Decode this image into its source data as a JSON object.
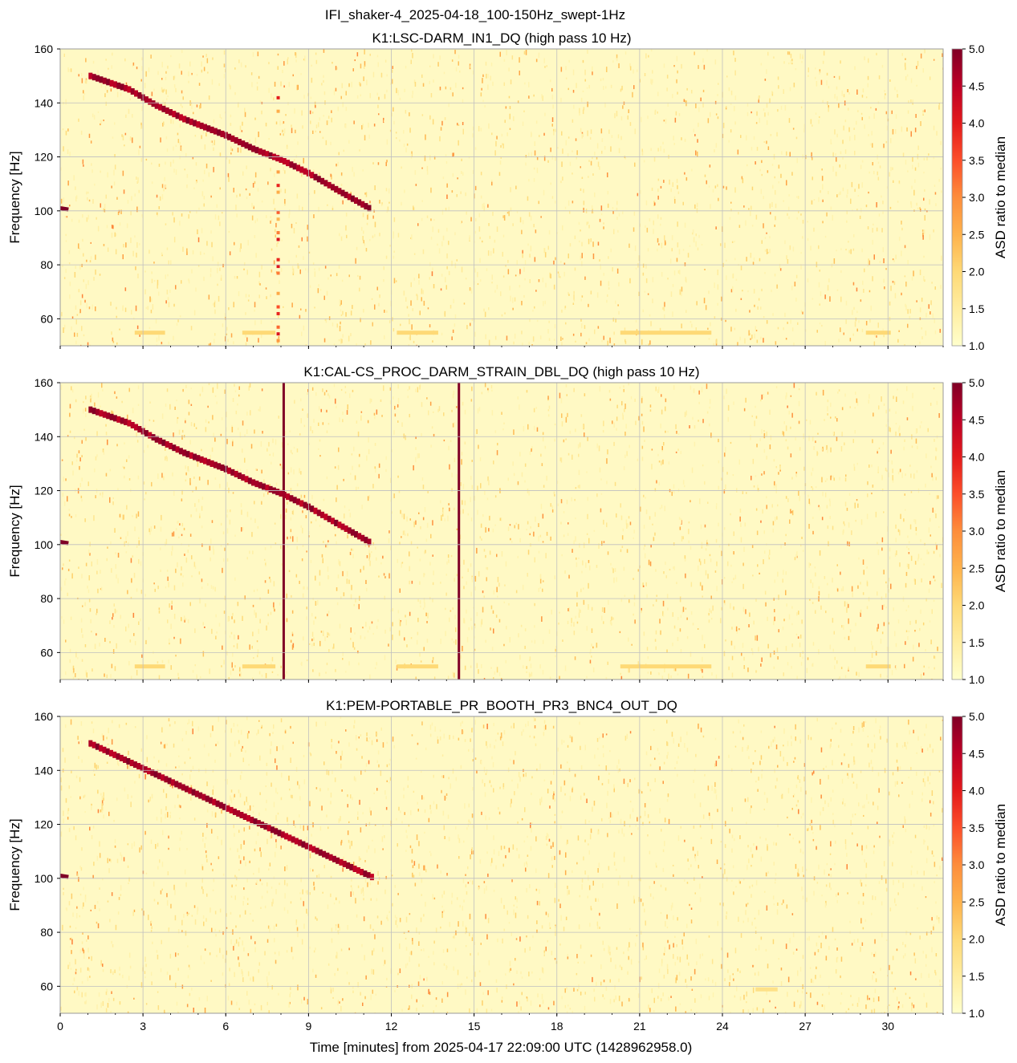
{
  "figure": {
    "suptitle": "IFI_shaker-4_2025-04-18_100-150Hz_swept-1Hz",
    "xlabel": "Time [minutes] from 2025-04-17 22:09:00 UTC (1428962958.0)"
  },
  "chart_data": [
    {
      "type": "heatmap",
      "title": "K1:LSC-DARM_IN1_DQ (high pass 10 Hz)",
      "xlabel": "Time [minutes] from 2025-04-17 22:09:00 UTC (1428962958.0)",
      "ylabel": "Frequency [Hz]",
      "xlim": [
        0,
        32
      ],
      "ylim": [
        50,
        160
      ],
      "xticks": [
        0,
        3,
        6,
        9,
        12,
        15,
        18,
        21,
        24,
        27,
        30
      ],
      "yticks": [
        60,
        80,
        100,
        120,
        140,
        160
      ],
      "colorbar": {
        "label": "ASD ratio to median",
        "range": [
          1.0,
          5.0
        ],
        "ticks": [
          "1.0",
          "1.5",
          "2.0",
          "2.5",
          "3.0",
          "3.5",
          "4.0",
          "4.5",
          "5.0"
        ],
        "colormap": "YlOrRd"
      },
      "grid": true,
      "features": {
        "sweep_points": [
          {
            "t": 0.0,
            "f": 101
          },
          {
            "t": 0.3,
            "f": 100.5
          },
          {
            "t": 1.1,
            "f": 150
          },
          {
            "t": 2.5,
            "f": 145
          },
          {
            "t": 3.5,
            "f": 139
          },
          {
            "t": 4.5,
            "f": 134
          },
          {
            "t": 5.5,
            "f": 130
          },
          {
            "t": 6.0,
            "f": 128
          },
          {
            "t": 7.0,
            "f": 123
          },
          {
            "t": 8.0,
            "f": 119
          },
          {
            "t": 9.0,
            "f": 114
          },
          {
            "t": 10.0,
            "f": 108
          },
          {
            "t": 11.2,
            "f": 101
          }
        ],
        "vertical_lines": [
          {
            "t": 7.9,
            "strength": 0.35
          }
        ],
        "horizontal_bands": [
          {
            "f": 55,
            "t_ranges": [
              [
                2.7,
                3.8
              ],
              [
                6.6,
                7.8
              ],
              [
                12.2,
                13.7
              ],
              [
                20.3,
                23.6
              ],
              [
                29.2,
                30.1
              ]
            ],
            "strength": 0.25
          }
        ]
      }
    },
    {
      "type": "heatmap",
      "title": "K1:CAL-CS_PROC_DARM_STRAIN_DBL_DQ (high pass 10 Hz)",
      "xlabel": "Time [minutes] from 2025-04-17 22:09:00 UTC (1428962958.0)",
      "ylabel": "Frequency [Hz]",
      "xlim": [
        0,
        32
      ],
      "ylim": [
        50,
        160
      ],
      "xticks": [
        0,
        3,
        6,
        9,
        12,
        15,
        18,
        21,
        24,
        27,
        30
      ],
      "yticks": [
        60,
        80,
        100,
        120,
        140,
        160
      ],
      "colorbar": {
        "label": "ASD ratio to median",
        "range": [
          1.0,
          5.0
        ],
        "ticks": [
          "1.0",
          "1.5",
          "2.0",
          "2.5",
          "3.0",
          "3.5",
          "4.0",
          "4.5",
          "5.0"
        ],
        "colormap": "YlOrRd"
      },
      "grid": true,
      "features": {
        "sweep_points": [
          {
            "t": 0.0,
            "f": 101
          },
          {
            "t": 0.3,
            "f": 100.5
          },
          {
            "t": 1.1,
            "f": 150
          },
          {
            "t": 2.5,
            "f": 145
          },
          {
            "t": 3.5,
            "f": 139
          },
          {
            "t": 4.5,
            "f": 134
          },
          {
            "t": 5.5,
            "f": 130
          },
          {
            "t": 6.0,
            "f": 128
          },
          {
            "t": 7.0,
            "f": 123
          },
          {
            "t": 8.0,
            "f": 119
          },
          {
            "t": 9.0,
            "f": 114
          },
          {
            "t": 10.0,
            "f": 108
          },
          {
            "t": 11.2,
            "f": 101
          }
        ],
        "vertical_lines": [
          {
            "t": 8.1,
            "strength": 1.0
          },
          {
            "t": 14.45,
            "strength": 1.0
          }
        ],
        "horizontal_bands": [
          {
            "f": 55,
            "t_ranges": [
              [
                2.7,
                3.8
              ],
              [
                6.6,
                7.8
              ],
              [
                12.2,
                13.7
              ],
              [
                20.3,
                23.6
              ],
              [
                29.2,
                30.1
              ]
            ],
            "strength": 0.25
          }
        ]
      }
    },
    {
      "type": "heatmap",
      "title": "K1:PEM-PORTABLE_PR_BOOTH_PR3_BNC4_OUT_DQ",
      "xlabel": "Time [minutes] from 2025-04-17 22:09:00 UTC (1428962958.0)",
      "ylabel": "Frequency [Hz]",
      "xlim": [
        0,
        32
      ],
      "ylim": [
        50,
        160
      ],
      "xticks": [
        0,
        3,
        6,
        9,
        12,
        15,
        18,
        21,
        24,
        27,
        30
      ],
      "yticks": [
        60,
        80,
        100,
        120,
        140,
        160
      ],
      "colorbar": {
        "label": "ASD ratio to median",
        "range": [
          1.0,
          5.0
        ],
        "ticks": [
          "1.0",
          "1.5",
          "2.0",
          "2.5",
          "3.0",
          "3.5",
          "4.0",
          "4.5",
          "5.0"
        ],
        "colormap": "YlOrRd"
      },
      "grid": true,
      "features": {
        "sweep_points": [
          {
            "t": 0.0,
            "f": 101
          },
          {
            "t": 0.3,
            "f": 100.5
          },
          {
            "t": 1.1,
            "f": 150
          },
          {
            "t": 11.3,
            "f": 100.5
          }
        ],
        "vertical_lines": [],
        "horizontal_bands": [
          {
            "f": 59,
            "t_ranges": [
              [
                25.2,
                26.0
              ]
            ],
            "strength": 0.2
          }
        ]
      }
    }
  ]
}
